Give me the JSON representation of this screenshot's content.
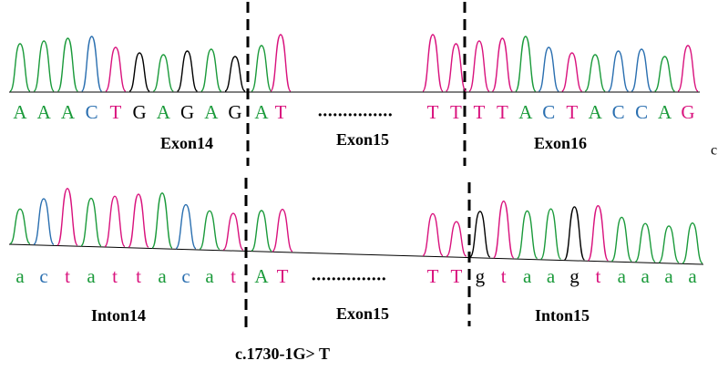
{
  "rows": [
    {
      "left_bases": [
        "A",
        "A",
        "A",
        "C",
        "T",
        "G",
        "A",
        "G",
        "A",
        "G",
        "A",
        "T"
      ],
      "left_colors": [
        "#1a9a3a",
        "#1a9a3a",
        "#1a9a3a",
        "#2a6fb0",
        "#d9127d",
        "#000000",
        "#1a9a3a",
        "#000000",
        "#1a9a3a",
        "#000000",
        "#1a9a3a",
        "#d9127d"
      ],
      "gap": "...............",
      "right_bases": [
        "T",
        "T",
        "T",
        "T",
        "A",
        "C",
        "T",
        "A",
        "C",
        "C",
        "A",
        "G"
      ],
      "right_colors": [
        "#d9127d",
        "#d9127d",
        "#d9127d",
        "#d9127d",
        "#1a9a3a",
        "#2a6fb0",
        "#d9127d",
        "#1a9a3a",
        "#2a6fb0",
        "#2a6fb0",
        "#1a9a3a",
        "#d9127d"
      ],
      "labels": [
        "Exon14",
        "Exon15",
        "Exon16"
      ]
    },
    {
      "left_bases": [
        "a",
        "c",
        "t",
        "a",
        "t",
        "t",
        "a",
        "c",
        "a",
        "t",
        "A",
        "T"
      ],
      "left_colors": [
        "#1a9a3a",
        "#2a6fb0",
        "#d9127d",
        "#1a9a3a",
        "#d9127d",
        "#d9127d",
        "#1a9a3a",
        "#2a6fb0",
        "#1a9a3a",
        "#d9127d",
        "#1a9a3a",
        "#d9127d"
      ],
      "gap": "...............",
      "right_bases": [
        "T",
        "T",
        "g",
        "t",
        "a",
        "a",
        "g",
        "t",
        "a",
        "a",
        "a",
        "a"
      ],
      "right_colors": [
        "#d9127d",
        "#d9127d",
        "#000000",
        "#d9127d",
        "#1a9a3a",
        "#1a9a3a",
        "#000000",
        "#d9127d",
        "#1a9a3a",
        "#1a9a3a",
        "#1a9a3a",
        "#1a9a3a"
      ],
      "labels": [
        "Inton14",
        "Exon15",
        "Inton15"
      ]
    }
  ],
  "side_mark": "c",
  "caption": "c.1730-1G> T"
}
